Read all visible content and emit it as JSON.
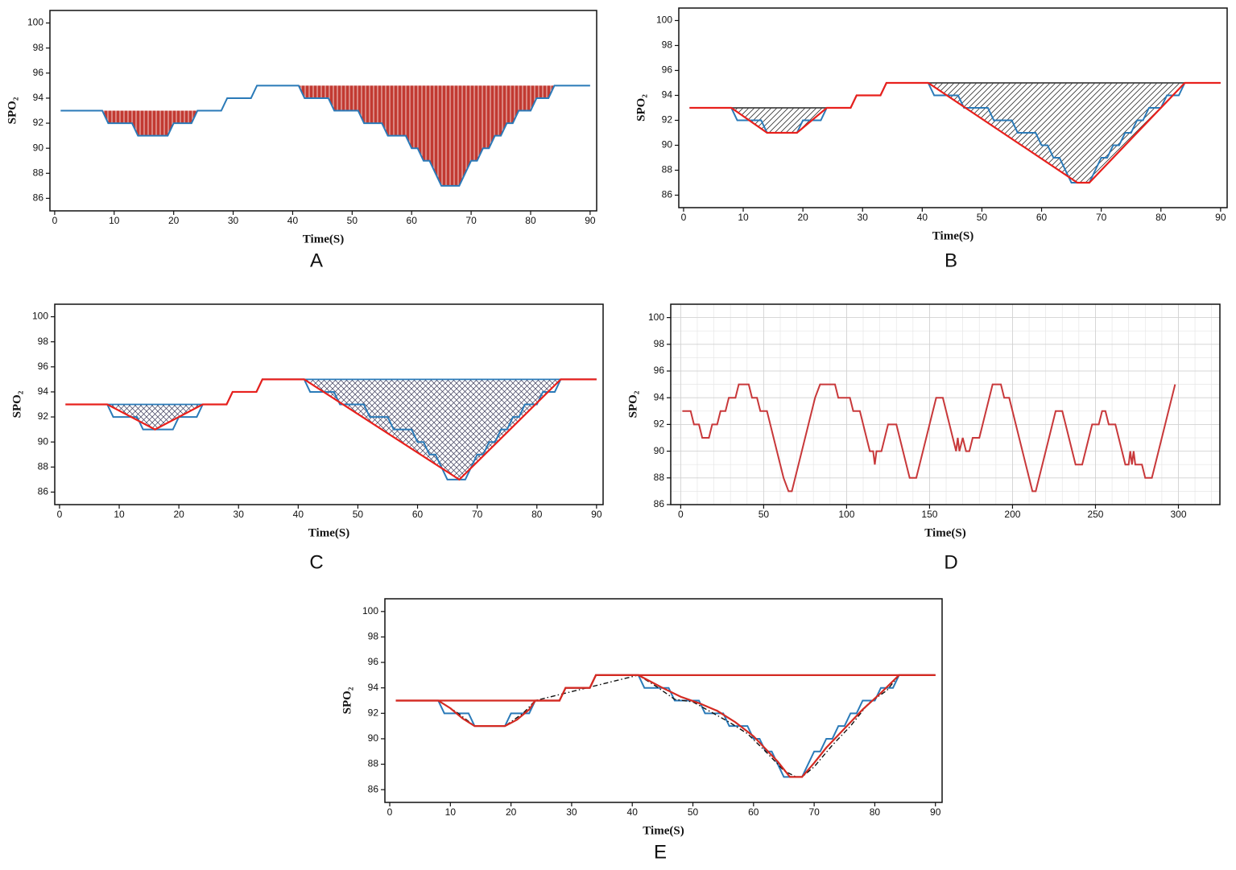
{
  "chart_data": [
    {
      "type": "line",
      "caption": "A",
      "xlabel": "Time(S)",
      "ylabel": "SPO₂",
      "xlim": [
        -0.8,
        91.1
      ],
      "ylim": [
        85,
        101
      ],
      "xticks": [
        0,
        10,
        20,
        30,
        40,
        50,
        60,
        70,
        80,
        90
      ],
      "yticks": [
        86,
        88,
        90,
        92,
        94,
        96,
        98,
        100
      ],
      "series": [
        {
          "color": "#2a7ab8",
          "x": [
            1,
            8,
            9,
            13,
            14,
            19,
            20,
            23,
            24,
            28,
            29,
            33,
            34,
            41,
            42,
            46,
            47,
            51,
            52,
            55,
            56,
            59,
            60,
            61,
            62,
            63,
            64,
            65,
            68,
            69,
            70,
            71,
            72,
            73,
            74,
            75,
            76,
            77,
            78,
            80,
            81,
            83,
            84,
            90
          ],
          "values": [
            93,
            93,
            92,
            92,
            91,
            91,
            92,
            92,
            93,
            93,
            94,
            94,
            95,
            95,
            94,
            94,
            93,
            93,
            92,
            92,
            91,
            91,
            90,
            90,
            89,
            89,
            88,
            87,
            87,
            88,
            89,
            89,
            90,
            90,
            91,
            91,
            92,
            92,
            93,
            93,
            94,
            94,
            95,
            95
          ]
        }
      ],
      "fill_pattern": "vertical",
      "fill_regions": [
        {
          "from": 8,
          "to": 24,
          "top": 93,
          "bound": 0
        },
        {
          "from": 41,
          "to": 84,
          "top": 95,
          "bound": 0
        }
      ]
    },
    {
      "type": "line",
      "caption": "B",
      "xlabel": "Time(S)",
      "ylabel": "SPO₂",
      "xlim": [
        -0.8,
        91.1
      ],
      "ylim": [
        85,
        101
      ],
      "xticks": [
        0,
        10,
        20,
        30,
        40,
        50,
        60,
        70,
        80,
        90
      ],
      "yticks": [
        86,
        88,
        90,
        92,
        94,
        96,
        98,
        100
      ],
      "series": [
        {
          "color": "#2a7ab8",
          "x": [
            1,
            8,
            9,
            13,
            14,
            19,
            20,
            23,
            24,
            28,
            29,
            33,
            34,
            41,
            42,
            46,
            47,
            51,
            52,
            55,
            56,
            59,
            60,
            61,
            62,
            63,
            64,
            65,
            68,
            69,
            70,
            71,
            72,
            73,
            74,
            75,
            76,
            77,
            78,
            80,
            81,
            83,
            84,
            90
          ],
          "values": [
            93,
            93,
            92,
            92,
            91,
            91,
            92,
            92,
            93,
            93,
            94,
            94,
            95,
            95,
            94,
            94,
            93,
            93,
            92,
            92,
            91,
            91,
            90,
            90,
            89,
            89,
            88,
            87,
            87,
            88,
            89,
            89,
            90,
            90,
            91,
            91,
            92,
            92,
            93,
            93,
            94,
            94,
            95,
            95
          ]
        },
        {
          "color": "#e8201c",
          "x": [
            1,
            8,
            14,
            19,
            24,
            28,
            29,
            33,
            34,
            41,
            66,
            68,
            84,
            90
          ],
          "values": [
            93,
            93,
            91,
            91,
            93,
            93,
            94,
            94,
            95,
            95,
            87,
            87,
            95,
            95
          ]
        }
      ],
      "fill_pattern": "diagonal",
      "edge_color": "#444444",
      "fill_regions": [
        {
          "from": 8,
          "to": 24,
          "top": 93,
          "bound": 1
        },
        {
          "from": 41,
          "to": 84,
          "top": 95,
          "bound": 1
        }
      ]
    },
    {
      "type": "line",
      "caption": "C",
      "xlabel": "Time(S)",
      "ylabel": "SPO₂",
      "xlim": [
        -0.8,
        91.1
      ],
      "ylim": [
        85,
        101
      ],
      "xticks": [
        0,
        10,
        20,
        30,
        40,
        50,
        60,
        70,
        80,
        90
      ],
      "yticks": [
        86,
        88,
        90,
        92,
        94,
        96,
        98,
        100
      ],
      "series": [
        {
          "color": "#2a7ab8",
          "x": [
            1,
            8,
            9,
            13,
            14,
            19,
            20,
            23,
            24,
            28,
            29,
            33,
            34,
            41,
            42,
            46,
            47,
            51,
            52,
            55,
            56,
            59,
            60,
            61,
            62,
            63,
            64,
            65,
            68,
            69,
            70,
            71,
            72,
            73,
            74,
            75,
            76,
            77,
            78,
            80,
            81,
            83,
            84,
            90
          ],
          "values": [
            93,
            93,
            92,
            92,
            91,
            91,
            92,
            92,
            93,
            93,
            94,
            94,
            95,
            95,
            94,
            94,
            93,
            93,
            92,
            92,
            91,
            91,
            90,
            90,
            89,
            89,
            88,
            87,
            87,
            88,
            89,
            89,
            90,
            90,
            91,
            91,
            92,
            92,
            93,
            93,
            94,
            94,
            95,
            95
          ]
        },
        {
          "color": "#e8201c",
          "x": [
            1,
            8,
            16,
            24,
            28,
            29,
            33,
            34,
            41,
            67,
            84,
            90
          ],
          "values": [
            93,
            93,
            91,
            93,
            93,
            94,
            94,
            95,
            95,
            87,
            95,
            95
          ]
        }
      ],
      "fill_pattern": "crosshatch",
      "edge_color": "#2a7ab8",
      "fill_regions": [
        {
          "from": 8,
          "to": 24,
          "top": 93,
          "bound": 1
        },
        {
          "from": 41,
          "to": 84,
          "top": 95,
          "bound": 1
        }
      ]
    },
    {
      "type": "line",
      "caption": "D",
      "xlabel": "Time(S)",
      "ylabel": "SPO₂",
      "xlim": [
        -6,
        325
      ],
      "ylim": [
        86,
        101
      ],
      "xticks": [
        0,
        50,
        100,
        150,
        200,
        250,
        300
      ],
      "yticks": [
        86,
        88,
        90,
        92,
        94,
        96,
        98,
        100
      ],
      "grid": true,
      "minor_grid": true,
      "series": [
        {
          "color": "#c8383a",
          "x": [
            1,
            6,
            8,
            11,
            13,
            17,
            19,
            22,
            24,
            27,
            29,
            33,
            35,
            41,
            43,
            46,
            48,
            52,
            54,
            56,
            58,
            60,
            62,
            65,
            67,
            69,
            71,
            73,
            75,
            77,
            79,
            81,
            84,
            93,
            95,
            102,
            104,
            108,
            110,
            112,
            114,
            116,
            117,
            118,
            121,
            123,
            125,
            130,
            132,
            134,
            136,
            138,
            142,
            144,
            146,
            148,
            150,
            152,
            154,
            158,
            160,
            162,
            164,
            166,
            167,
            168,
            170,
            172,
            174,
            176,
            180,
            182,
            184,
            186,
            188,
            193,
            195,
            198,
            200,
            202,
            204,
            206,
            208,
            210,
            212,
            214,
            216,
            218,
            220,
            222,
            224,
            226,
            230,
            232,
            234,
            236,
            238,
            242,
            244,
            246,
            248,
            252,
            254,
            256,
            258,
            262,
            264,
            266,
            268,
            270,
            271,
            272,
            273,
            274,
            278,
            280,
            284,
            286,
            288,
            290,
            292,
            294,
            296,
            298
          ],
          "values": [
            93,
            93,
            92,
            92,
            91,
            91,
            92,
            92,
            93,
            93,
            94,
            94,
            95,
            95,
            94,
            94,
            93,
            93,
            92,
            91,
            90,
            89,
            88,
            87,
            87,
            88,
            89,
            90,
            91,
            92,
            93,
            94,
            95,
            95,
            94,
            94,
            93,
            93,
            92,
            91,
            90,
            90,
            89,
            90,
            90,
            91,
            92,
            92,
            91,
            90,
            89,
            88,
            88,
            89,
            90,
            91,
            92,
            93,
            94,
            94,
            93,
            92,
            91,
            90,
            91,
            90,
            91,
            90,
            90,
            91,
            91,
            92,
            93,
            94,
            95,
            95,
            94,
            94,
            93,
            92,
            91,
            90,
            89,
            88,
            87,
            87,
            88,
            89,
            90,
            91,
            92,
            93,
            93,
            92,
            91,
            90,
            89,
            89,
            90,
            91,
            92,
            92,
            93,
            93,
            92,
            92,
            91,
            90,
            89,
            89,
            90,
            89,
            90,
            89,
            89,
            88,
            88,
            89,
            90,
            91,
            92,
            93,
            94,
            95
          ]
        }
      ]
    },
    {
      "type": "line",
      "caption": "E",
      "xlabel": "Time(S)",
      "ylabel": "SPO₂",
      "xlim": [
        -0.8,
        91.1
      ],
      "ylim": [
        85,
        101
      ],
      "xticks": [
        0,
        10,
        20,
        30,
        40,
        50,
        60,
        70,
        80,
        90
      ],
      "yticks": [
        86,
        88,
        90,
        92,
        94,
        96,
        98,
        100
      ],
      "series": [
        {
          "color": "#2a7ab8",
          "x": [
            1,
            8,
            9,
            13,
            14,
            19,
            20,
            23,
            24,
            28,
            29,
            33,
            34,
            41,
            42,
            46,
            47,
            51,
            52,
            55,
            56,
            59,
            60,
            61,
            62,
            63,
            64,
            65,
            68,
            69,
            70,
            71,
            72,
            73,
            74,
            75,
            76,
            77,
            78,
            80,
            81,
            83,
            84,
            90
          ],
          "values": [
            93,
            93,
            92,
            92,
            91,
            91,
            92,
            92,
            93,
            93,
            94,
            94,
            95,
            95,
            94,
            94,
            93,
            93,
            92,
            92,
            91,
            91,
            90,
            90,
            89,
            89,
            88,
            87,
            87,
            88,
            89,
            89,
            90,
            90,
            91,
            91,
            92,
            92,
            93,
            93,
            94,
            94,
            95,
            95
          ]
        },
        {
          "color": "#111111",
          "line_style": "dashdot",
          "x": [
            8,
            11,
            14,
            19,
            22,
            24,
            41,
            44,
            47,
            50,
            53,
            56,
            59,
            62,
            65,
            67,
            68,
            70,
            73,
            76,
            79,
            82,
            84
          ],
          "values": [
            93,
            92.1,
            91,
            91,
            92,
            93,
            95,
            94.1,
            93.1,
            92.9,
            92.1,
            91.3,
            90.4,
            89,
            87.5,
            87,
            87,
            87.8,
            89.5,
            91,
            92.8,
            93.8,
            95
          ]
        },
        {
          "color": "#d42a22",
          "x": [
            1,
            8,
            10,
            12,
            14,
            19,
            21,
            23,
            24,
            28,
            29,
            33,
            34,
            41,
            43,
            45,
            48,
            51,
            54,
            57,
            60,
            62,
            64,
            66,
            68,
            70,
            72,
            75,
            78,
            81,
            84,
            90
          ],
          "values": [
            93,
            93,
            92.4,
            91.6,
            91,
            91,
            91.5,
            92.3,
            93,
            93,
            94,
            94,
            95,
            95,
            94.5,
            94,
            93.3,
            92.8,
            92.2,
            91.3,
            90.2,
            89.2,
            88.2,
            87,
            87,
            88.1,
            89.3,
            90.8,
            92.3,
            93.6,
            95,
            95
          ]
        },
        {
          "color": "#d42a22",
          "x": [
            1,
            28,
            29,
            33,
            34,
            90
          ],
          "values": [
            93,
            93,
            94,
            94,
            95,
            95
          ]
        }
      ]
    }
  ]
}
